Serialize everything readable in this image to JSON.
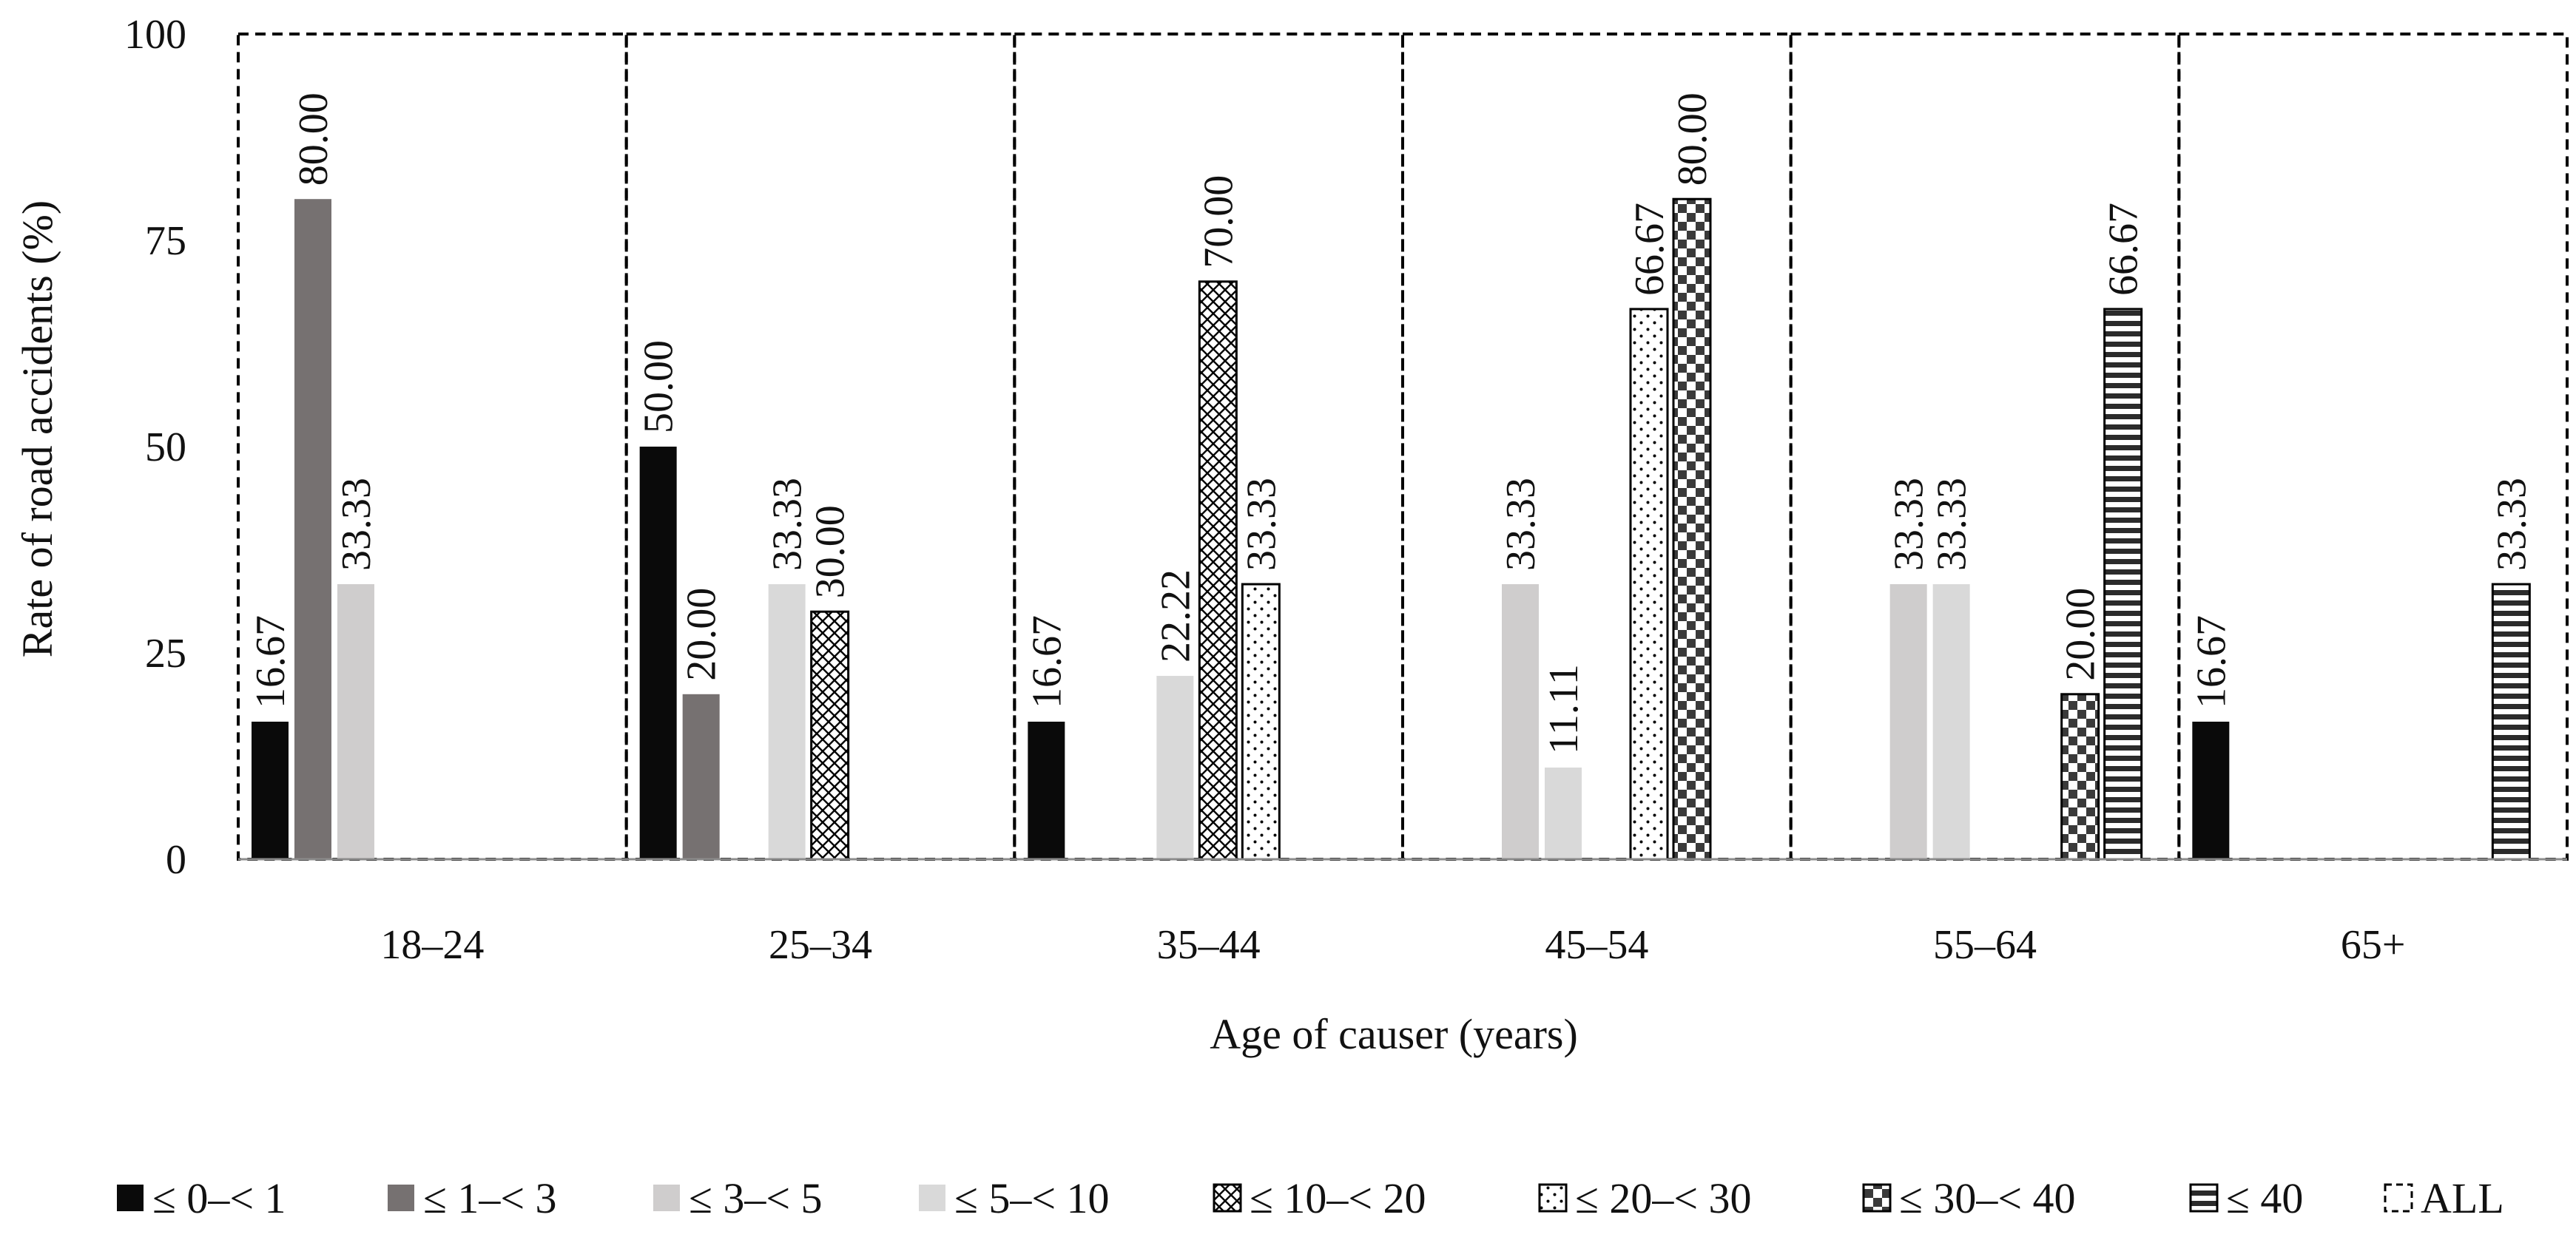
{
  "chart_data": {
    "type": "bar",
    "title": "",
    "xlabel": "Age of causer (years)",
    "ylabel": "Rate of road accidents (%)",
    "ylim": [
      0,
      100
    ],
    "yticks": [
      "0",
      "25",
      "50",
      "75",
      "100"
    ],
    "grid": false,
    "legend_position": "bottom",
    "categories": [
      "18–24",
      "25–34",
      "35–44",
      "45–54",
      "55–64",
      "65+"
    ],
    "series": [
      {
        "name": "≤ 0–< 1",
        "pattern": "solid-black",
        "values": [
          16.67,
          50.0,
          16.67,
          null,
          null,
          16.67
        ],
        "labels": [
          "16.67",
          "50.00",
          "16.67",
          "",
          "",
          "16.67"
        ]
      },
      {
        "name": "≤ 1–< 3",
        "pattern": "solid-darkgray",
        "values": [
          80.0,
          20.0,
          null,
          null,
          null,
          null
        ],
        "labels": [
          "80.00",
          "20.00",
          "",
          "",
          "",
          ""
        ]
      },
      {
        "name": "≤ 3–< 5",
        "pattern": "solid-midgray",
        "values": [
          33.33,
          null,
          null,
          33.33,
          33.33,
          null
        ],
        "labels": [
          "33.33",
          "",
          "",
          "33.33",
          "33.33",
          ""
        ]
      },
      {
        "name": "≤ 5–< 10",
        "pattern": "solid-lightgray",
        "values": [
          null,
          33.33,
          22.22,
          11.11,
          33.33,
          null
        ],
        "labels": [
          "",
          "33.33",
          "22.22",
          "11.11",
          "33.33",
          ""
        ]
      },
      {
        "name": "≤ 10–< 20",
        "pattern": "crosshatch",
        "values": [
          null,
          30.0,
          70.0,
          null,
          null,
          null
        ],
        "labels": [
          "",
          "30.00",
          "70.00",
          "",
          "",
          ""
        ]
      },
      {
        "name": "≤ 20–< 30",
        "pattern": "dots",
        "values": [
          null,
          null,
          33.33,
          66.67,
          null,
          null
        ],
        "labels": [
          "",
          "",
          "33.33",
          "66.67",
          "",
          ""
        ]
      },
      {
        "name": "≤ 30–< 40",
        "pattern": "checker",
        "values": [
          null,
          null,
          null,
          80.0,
          20.0,
          null
        ],
        "labels": [
          "",
          "",
          "",
          "80.00",
          "20.00",
          ""
        ]
      },
      {
        "name": "≤ 40",
        "pattern": "hstripes",
        "values": [
          null,
          null,
          null,
          null,
          66.67,
          33.33
        ],
        "labels": [
          "",
          "",
          "",
          "",
          "66.67",
          "33.33"
        ]
      },
      {
        "name": "ALL",
        "pattern": "dashed-outline",
        "values": [
          100,
          100,
          100,
          100,
          100,
          100
        ],
        "labels": [
          "",
          "",
          "",
          "",
          "",
          ""
        ]
      }
    ]
  },
  "colors": {
    "solid-black": "#0a0a0a",
    "solid-darkgray": "#767171",
    "solid-midgray": "#cfcdcd",
    "solid-lightgray": "#d9d9d9",
    "pattern-ink": "#000000",
    "axis": "#8c8c8c"
  }
}
